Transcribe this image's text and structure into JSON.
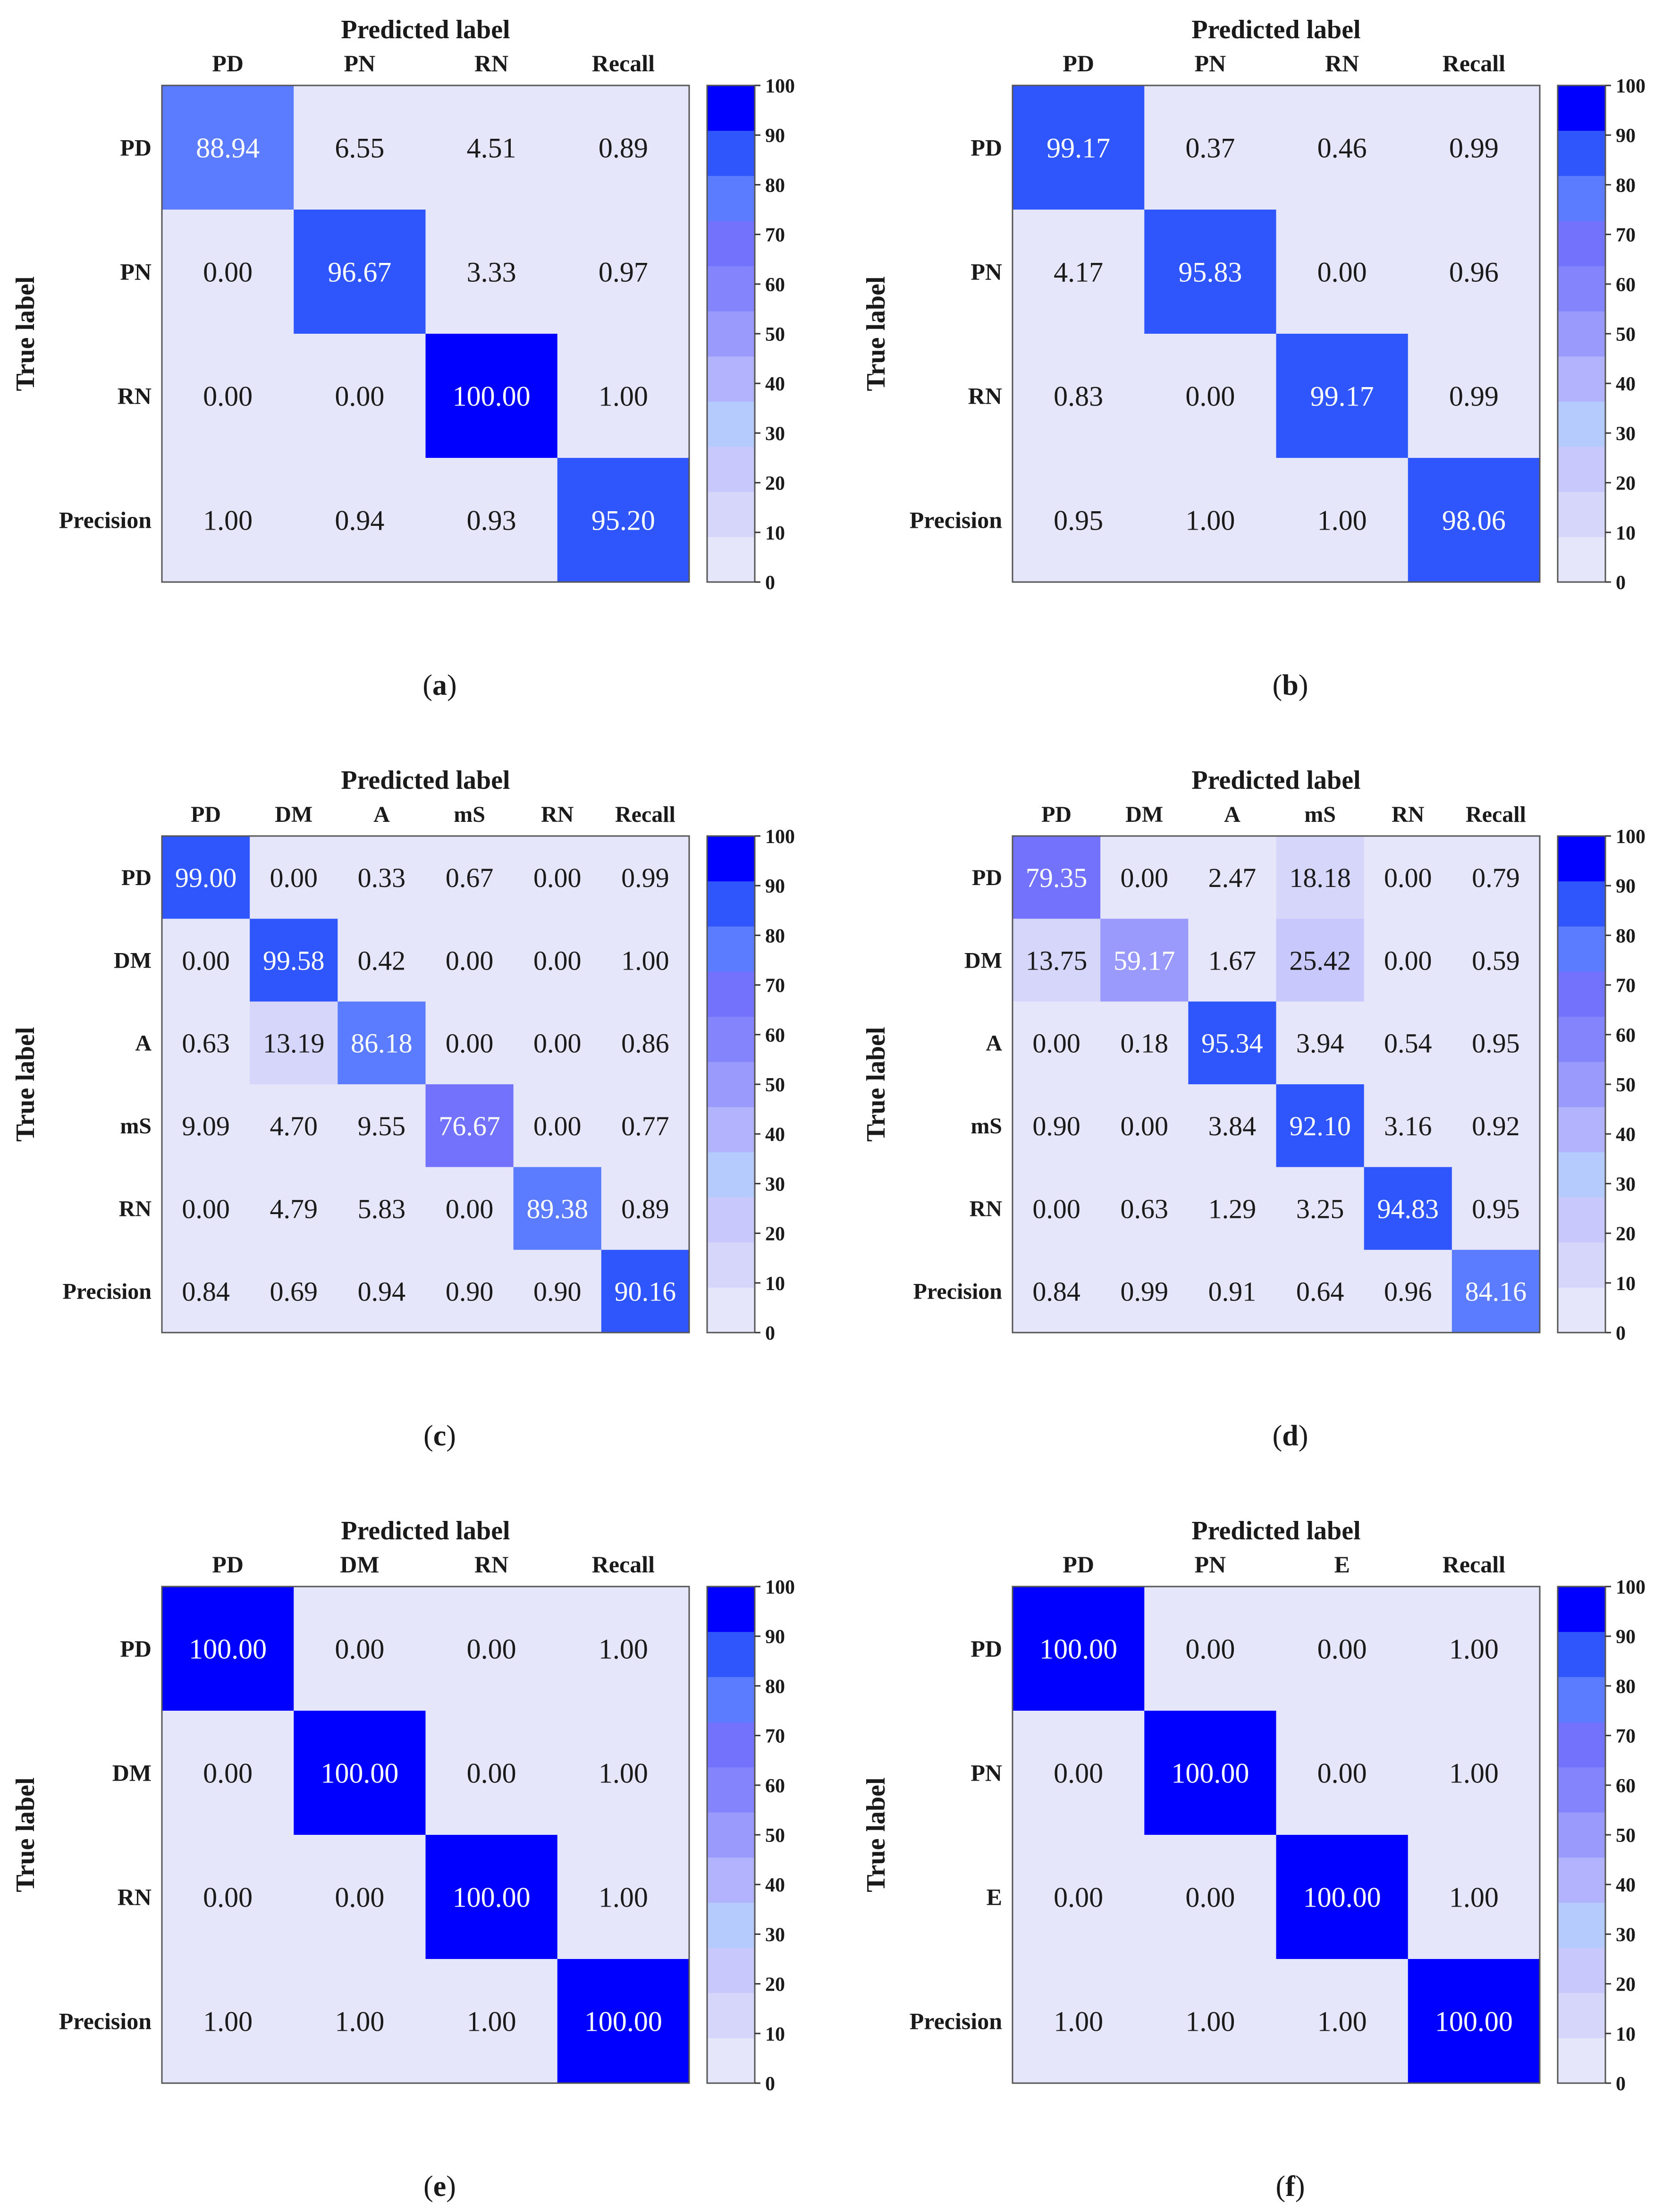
{
  "figure": {
    "colorbar": {
      "ticks": [
        0,
        10,
        20,
        30,
        40,
        50,
        60,
        70,
        80,
        90,
        100
      ],
      "levels": [
        "#e6e6fa",
        "#d6d6fb",
        "#c8c8fd",
        "#b6cbfd",
        "#b3b3fd",
        "#9a9afc",
        "#8484fc",
        "#7272fd",
        "#5c7cff",
        "#2f55fd",
        "#0000ff"
      ]
    },
    "value_text_colors": {
      "dark": "#1a1a1a",
      "light": "#ffffff"
    }
  },
  "chart_data": [
    {
      "type": "heatmap",
      "panel_label": "a",
      "title": "Predicted label",
      "xlabel": "Predicted label",
      "ylabel": "True label",
      "columns": [
        "PD",
        "PN",
        "RN",
        "Recall"
      ],
      "rows": [
        "PD",
        "PN",
        "RN",
        "Precision"
      ],
      "values": [
        [
          "88.94",
          "6.55",
          "4.51",
          "0.89"
        ],
        [
          "0.00",
          "96.67",
          "3.33",
          "0.97"
        ],
        [
          "0.00",
          "0.00",
          "100.00",
          "1.00"
        ],
        [
          "1.00",
          "0.94",
          "0.93",
          "95.20"
        ]
      ],
      "colorbar_range": [
        0,
        100
      ]
    },
    {
      "type": "heatmap",
      "panel_label": "b",
      "title": "Predicted label",
      "xlabel": "Predicted label",
      "ylabel": "True label",
      "columns": [
        "PD",
        "PN",
        "RN",
        "Recall"
      ],
      "rows": [
        "PD",
        "PN",
        "RN",
        "Precision"
      ],
      "values": [
        [
          "99.17",
          "0.37",
          "0.46",
          "0.99"
        ],
        [
          "4.17",
          "95.83",
          "0.00",
          "0.96"
        ],
        [
          "0.83",
          "0.00",
          "99.17",
          "0.99"
        ],
        [
          "0.95",
          "1.00",
          "1.00",
          "98.06"
        ]
      ],
      "colorbar_range": [
        0,
        100
      ]
    },
    {
      "type": "heatmap",
      "panel_label": "c",
      "title": "Predicted label",
      "xlabel": "Predicted label",
      "ylabel": "True label",
      "columns": [
        "PD",
        "DM",
        "A",
        "mS",
        "RN",
        "Recall"
      ],
      "rows": [
        "PD",
        "DM",
        "A",
        "mS",
        "RN",
        "Precision"
      ],
      "values": [
        [
          "99.00",
          "0.00",
          "0.33",
          "0.67",
          "0.00",
          "0.99"
        ],
        [
          "0.00",
          "99.58",
          "0.42",
          "0.00",
          "0.00",
          "1.00"
        ],
        [
          "0.63",
          "13.19",
          "86.18",
          "0.00",
          "0.00",
          "0.86"
        ],
        [
          "9.09",
          "4.70",
          "9.55",
          "76.67",
          "0.00",
          "0.77"
        ],
        [
          "0.00",
          "4.79",
          "5.83",
          "0.00",
          "89.38",
          "0.89"
        ],
        [
          "0.84",
          "0.69",
          "0.94",
          "0.90",
          "0.90",
          "90.16"
        ]
      ],
      "colorbar_range": [
        0,
        100
      ]
    },
    {
      "type": "heatmap",
      "panel_label": "d",
      "title": "Predicted label",
      "xlabel": "Predicted label",
      "ylabel": "True label",
      "columns": [
        "PD",
        "DM",
        "A",
        "mS",
        "RN",
        "Recall"
      ],
      "rows": [
        "PD",
        "DM",
        "A",
        "mS",
        "RN",
        "Precision"
      ],
      "values": [
        [
          "79.35",
          "0.00",
          "2.47",
          "18.18",
          "0.00",
          "0.79"
        ],
        [
          "13.75",
          "59.17",
          "1.67",
          "25.42",
          "0.00",
          "0.59"
        ],
        [
          "0.00",
          "0.18",
          "95.34",
          "3.94",
          "0.54",
          "0.95"
        ],
        [
          "0.90",
          "0.00",
          "3.84",
          "92.10",
          "3.16",
          "0.92"
        ],
        [
          "0.00",
          "0.63",
          "1.29",
          "3.25",
          "94.83",
          "0.95"
        ],
        [
          "0.84",
          "0.99",
          "0.91",
          "0.64",
          "0.96",
          "84.16"
        ]
      ],
      "colorbar_range": [
        0,
        100
      ]
    },
    {
      "type": "heatmap",
      "panel_label": "e",
      "title": "Predicted label",
      "xlabel": "Predicted label",
      "ylabel": "True label",
      "columns": [
        "PD",
        "DM",
        "RN",
        "Recall"
      ],
      "rows": [
        "PD",
        "DM",
        "RN",
        "Precision"
      ],
      "values": [
        [
          "100.00",
          "0.00",
          "0.00",
          "1.00"
        ],
        [
          "0.00",
          "100.00",
          "0.00",
          "1.00"
        ],
        [
          "0.00",
          "0.00",
          "100.00",
          "1.00"
        ],
        [
          "1.00",
          "1.00",
          "1.00",
          "100.00"
        ]
      ],
      "colorbar_range": [
        0,
        100
      ]
    },
    {
      "type": "heatmap",
      "panel_label": "f",
      "title": "Predicted label",
      "xlabel": "Predicted label",
      "ylabel": "True label",
      "columns": [
        "PD",
        "PN",
        "E",
        "Recall"
      ],
      "rows": [
        "PD",
        "PN",
        "E",
        "Precision"
      ],
      "values": [
        [
          "100.00",
          "0.00",
          "0.00",
          "1.00"
        ],
        [
          "0.00",
          "100.00",
          "0.00",
          "1.00"
        ],
        [
          "0.00",
          "0.00",
          "100.00",
          "1.00"
        ],
        [
          "1.00",
          "1.00",
          "1.00",
          "100.00"
        ]
      ],
      "colorbar_range": [
        0,
        100
      ]
    }
  ]
}
